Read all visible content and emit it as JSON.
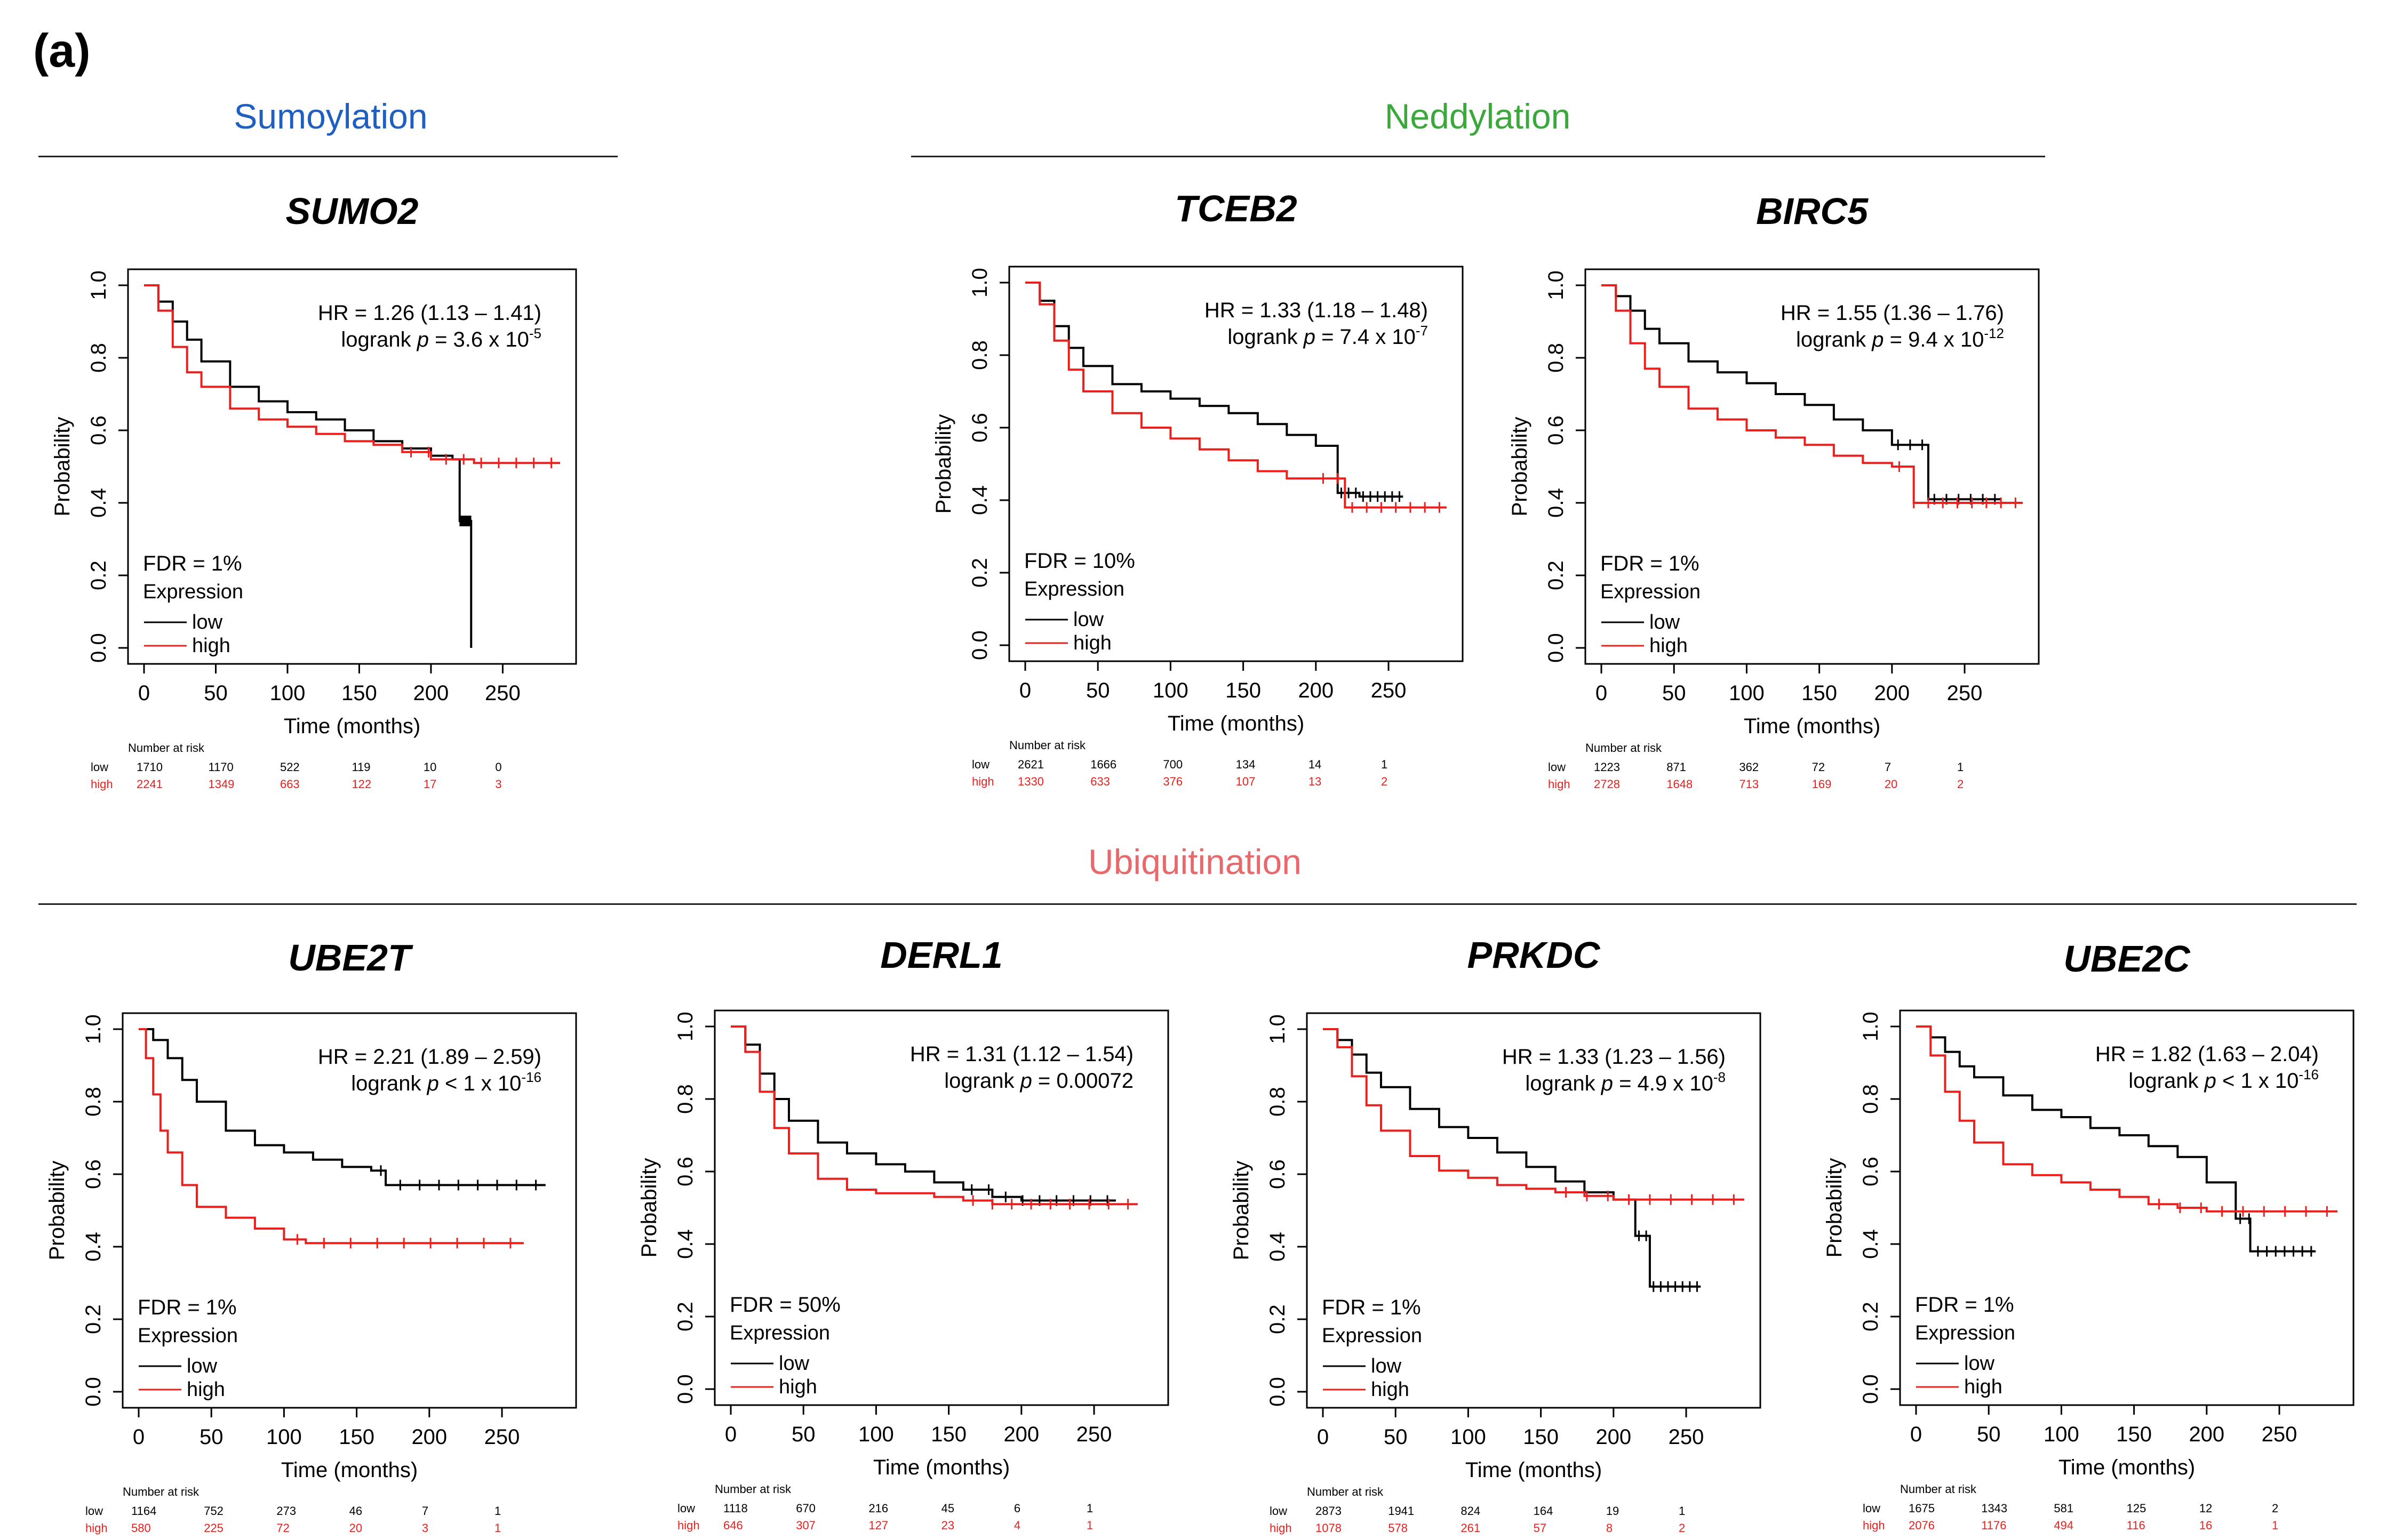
{
  "panel_label": "(a)",
  "sections": {
    "sumoylation": {
      "title": "Sumoylation",
      "color": "#1f5fbf"
    },
    "neddylation": {
      "title": "Neddylation",
      "color": "#3aa83a"
    },
    "ubiquitination": {
      "title": "Ubiquitination",
      "color": "#e8696b"
    }
  },
  "colors": {
    "low": "#000000",
    "high": "#e8201e"
  },
  "chart_data": [
    {
      "type": "line",
      "gene": "SUMO2",
      "title": "SUMO2",
      "xlabel": "Time (months)",
      "ylabel": "Probability",
      "xticks": [
        "0",
        "50",
        "100",
        "150",
        "200",
        "250"
      ],
      "yticks": [
        "0.0",
        "0.2",
        "0.4",
        "0.6",
        "0.8",
        "1.0"
      ],
      "xlim": [
        0,
        290
      ],
      "ylim": [
        0,
        1
      ],
      "hr_line": "HR = 1.26 (1.13 – 1.41)",
      "logrank": {
        "prefix": "logrank ",
        "p": "p",
        "value": " = 3.6 x 10",
        "exp": "-5"
      },
      "fdr": "FDR = 1%",
      "legend_title": "Expression",
      "legend_low": "low",
      "legend_high": "high",
      "risk": {
        "header": "Number at risk",
        "times": [
          0,
          50,
          100,
          150,
          200,
          250
        ],
        "low_label": "low",
        "high_label": "high",
        "low": [
          "1710",
          "1170",
          "522",
          "119",
          "10",
          "0"
        ],
        "high": [
          "2241",
          "1349",
          "663",
          "122",
          "17",
          "3"
        ]
      },
      "series": [
        {
          "name": "low",
          "x": [
            0,
            10,
            20,
            30,
            40,
            60,
            80,
            100,
            120,
            140,
            160,
            180,
            200,
            215,
            220,
            220,
            228,
            228
          ],
          "y": [
            1,
            0.955,
            0.9,
            0.85,
            0.79,
            0.72,
            0.68,
            0.65,
            0.63,
            0.6,
            0.57,
            0.55,
            0.53,
            0.52,
            0.52,
            0.35,
            0.35,
            0.0
          ]
        },
        {
          "name": "high",
          "x": [
            0,
            10,
            20,
            30,
            40,
            60,
            80,
            100,
            120,
            140,
            160,
            180,
            200,
            230,
            290
          ],
          "y": [
            1,
            0.93,
            0.83,
            0.76,
            0.72,
            0.66,
            0.63,
            0.61,
            0.59,
            0.57,
            0.56,
            0.54,
            0.52,
            0.51,
            0.51
          ]
        }
      ]
    },
    {
      "type": "line",
      "gene": "TCEB2",
      "title": "TCEB2",
      "xlabel": "Time (months)",
      "ylabel": "Probability",
      "xticks": [
        "0",
        "50",
        "100",
        "150",
        "200",
        "250"
      ],
      "yticks": [
        "0.0",
        "0.2",
        "0.4",
        "0.6",
        "0.8",
        "1.0"
      ],
      "xlim": [
        0,
        290
      ],
      "ylim": [
        0,
        1
      ],
      "hr_line": "HR = 1.33 (1.18 – 1.48)",
      "logrank": {
        "prefix": "logrank ",
        "p": "p",
        "value": " = 7.4 x 10",
        "exp": "-7"
      },
      "fdr": "FDR = 10%",
      "legend_title": "Expression",
      "legend_low": "low",
      "legend_high": "high",
      "risk": {
        "header": "Number at risk",
        "times": [
          0,
          50,
          100,
          150,
          200,
          250
        ],
        "low_label": "low",
        "high_label": "high",
        "low": [
          "2621",
          "1666",
          "700",
          "134",
          "14",
          "1"
        ],
        "high": [
          "1330",
          "633",
          "376",
          "107",
          "13",
          "2"
        ]
      },
      "series": [
        {
          "name": "low",
          "x": [
            0,
            10,
            20,
            30,
            40,
            60,
            80,
            100,
            120,
            140,
            160,
            180,
            200,
            215,
            215,
            230,
            230,
            260
          ],
          "y": [
            1,
            0.95,
            0.88,
            0.82,
            0.77,
            0.72,
            0.7,
            0.68,
            0.66,
            0.64,
            0.61,
            0.58,
            0.55,
            0.55,
            0.42,
            0.42,
            0.41,
            0.41
          ]
        },
        {
          "name": "high",
          "x": [
            0,
            10,
            20,
            30,
            40,
            60,
            80,
            100,
            120,
            140,
            160,
            180,
            200,
            220,
            220,
            290
          ],
          "y": [
            1,
            0.94,
            0.84,
            0.76,
            0.7,
            0.64,
            0.6,
            0.57,
            0.54,
            0.51,
            0.48,
            0.46,
            0.46,
            0.43,
            0.38,
            0.38
          ]
        }
      ]
    },
    {
      "type": "line",
      "gene": "BIRC5",
      "title": "BIRC5",
      "xlabel": "Time (months)",
      "ylabel": "Probability",
      "xticks": [
        "0",
        "50",
        "100",
        "150",
        "200",
        "250"
      ],
      "yticks": [
        "0.0",
        "0.2",
        "0.4",
        "0.6",
        "0.8",
        "1.0"
      ],
      "xlim": [
        0,
        290
      ],
      "ylim": [
        0,
        1
      ],
      "hr_line": "HR = 1.55 (1.36 – 1.76)",
      "logrank": {
        "prefix": "logrank ",
        "p": "p",
        "value": " = 9.4 x 10",
        "exp": "-12"
      },
      "fdr": "FDR = 1%",
      "legend_title": "Expression",
      "legend_low": "low",
      "legend_high": "high",
      "risk": {
        "header": "Number at risk",
        "times": [
          0,
          50,
          100,
          150,
          200,
          250
        ],
        "low_label": "low",
        "high_label": "high",
        "low": [
          "1223",
          "871",
          "362",
          "72",
          "7",
          "1"
        ],
        "high": [
          "2728",
          "1648",
          "713",
          "169",
          "20",
          "2"
        ]
      },
      "series": [
        {
          "name": "low",
          "x": [
            0,
            10,
            20,
            30,
            40,
            60,
            80,
            100,
            120,
            140,
            160,
            180,
            200,
            225,
            225,
            275
          ],
          "y": [
            1,
            0.97,
            0.93,
            0.88,
            0.84,
            0.79,
            0.76,
            0.73,
            0.7,
            0.67,
            0.63,
            0.6,
            0.56,
            0.55,
            0.41,
            0.41
          ]
        },
        {
          "name": "high",
          "x": [
            0,
            10,
            20,
            30,
            40,
            60,
            80,
            100,
            120,
            140,
            160,
            180,
            200,
            215,
            215,
            290
          ],
          "y": [
            1,
            0.93,
            0.84,
            0.77,
            0.72,
            0.66,
            0.63,
            0.6,
            0.58,
            0.56,
            0.53,
            0.51,
            0.5,
            0.5,
            0.4,
            0.4
          ]
        }
      ]
    },
    {
      "type": "line",
      "gene": "UBE2T",
      "title": "UBE2T",
      "xlabel": "Time (months)",
      "ylabel": "Probability",
      "xticks": [
        "0",
        "50",
        "100",
        "150",
        "200",
        "250"
      ],
      "yticks": [
        "0.0",
        "0.2",
        "0.4",
        "0.6",
        "0.8",
        "1.0"
      ],
      "xlim": [
        0,
        290
      ],
      "ylim": [
        0,
        1
      ],
      "hr_line": "HR = 2.21 (1.89 – 2.59)",
      "logrank": {
        "prefix": "logrank ",
        "p": "p",
        "value": " < 1 x 10",
        "exp": "-16"
      },
      "fdr": "FDR = 1%",
      "legend_title": "Expression",
      "legend_low": "low",
      "legend_high": "high",
      "risk": {
        "header": "Number at risk",
        "times": [
          0,
          50,
          100,
          150,
          200,
          250
        ],
        "low_label": "low",
        "high_label": "high",
        "low": [
          "1164",
          "752",
          "273",
          "46",
          "7",
          "1"
        ],
        "high": [
          "580",
          "225",
          "72",
          "20",
          "3",
          "1"
        ]
      },
      "series": [
        {
          "name": "low",
          "x": [
            0,
            10,
            20,
            30,
            40,
            60,
            80,
            100,
            120,
            140,
            160,
            170,
            170,
            280
          ],
          "y": [
            1,
            0.97,
            0.92,
            0.86,
            0.8,
            0.72,
            0.68,
            0.66,
            0.64,
            0.62,
            0.61,
            0.6,
            0.57,
            0.57
          ]
        },
        {
          "name": "high",
          "x": [
            0,
            5,
            10,
            15,
            20,
            30,
            40,
            60,
            80,
            100,
            115,
            120,
            265
          ],
          "y": [
            1,
            0.92,
            0.82,
            0.72,
            0.66,
            0.57,
            0.51,
            0.48,
            0.45,
            0.42,
            0.41,
            0.41,
            0.41
          ]
        }
      ]
    },
    {
      "type": "line",
      "gene": "DERL1",
      "title": "DERL1",
      "xlabel": "Time (months)",
      "ylabel": "Probability",
      "xticks": [
        "0",
        "50",
        "100",
        "150",
        "200",
        "250"
      ],
      "yticks": [
        "0.0",
        "0.2",
        "0.4",
        "0.6",
        "0.8",
        "1.0"
      ],
      "xlim": [
        0,
        290
      ],
      "ylim": [
        0,
        1
      ],
      "hr_line": "HR = 1.31 (1.12 – 1.54)",
      "logrank": {
        "prefix": "logrank ",
        "p": "p",
        "value": " = 0.00072",
        "exp": ""
      },
      "fdr": "FDR = 50%",
      "legend_title": "Expression",
      "legend_low": "low",
      "legend_high": "high",
      "risk": {
        "header": "Number at risk",
        "times": [
          0,
          50,
          100,
          150,
          200,
          250
        ],
        "low_label": "low",
        "high_label": "high",
        "low": [
          "1118",
          "670",
          "216",
          "45",
          "6",
          "1"
        ],
        "high": [
          "646",
          "307",
          "127",
          "23",
          "4",
          "1"
        ]
      },
      "series": [
        {
          "name": "low",
          "x": [
            0,
            10,
            20,
            30,
            40,
            60,
            80,
            100,
            120,
            140,
            160,
            180,
            200,
            265
          ],
          "y": [
            1,
            0.95,
            0.87,
            0.8,
            0.74,
            0.68,
            0.65,
            0.62,
            0.6,
            0.57,
            0.55,
            0.53,
            0.52,
            0.52
          ]
        },
        {
          "name": "high",
          "x": [
            0,
            10,
            20,
            30,
            40,
            60,
            80,
            100,
            120,
            140,
            160,
            180,
            200,
            280
          ],
          "y": [
            1,
            0.93,
            0.82,
            0.72,
            0.65,
            0.58,
            0.55,
            0.54,
            0.54,
            0.53,
            0.52,
            0.51,
            0.51,
            0.51
          ]
        }
      ]
    },
    {
      "type": "line",
      "gene": "PRKDC",
      "title": "PRKDC",
      "xlabel": "Time (months)",
      "ylabel": "Probability",
      "xticks": [
        "0",
        "50",
        "100",
        "150",
        "200",
        "250"
      ],
      "yticks": [
        "0.0",
        "0.2",
        "0.4",
        "0.6",
        "0.8",
        "1.0"
      ],
      "xlim": [
        0,
        290
      ],
      "ylim": [
        0,
        1
      ],
      "hr_line": "HR = 1.33 (1.23 – 1.56)",
      "logrank": {
        "prefix": "logrank ",
        "p": "p",
        "value": " = 4.9 x 10",
        "exp": "-8"
      },
      "fdr": "FDR = 1%",
      "legend_title": "Expression",
      "legend_low": "low",
      "legend_high": "high",
      "risk": {
        "header": "Number at risk",
        "times": [
          0,
          50,
          100,
          150,
          200,
          250
        ],
        "low_label": "low",
        "high_label": "high",
        "low": [
          "2873",
          "1941",
          "824",
          "164",
          "19",
          "1"
        ],
        "high": [
          "1078",
          "578",
          "261",
          "57",
          "8",
          "2"
        ]
      },
      "series": [
        {
          "name": "low",
          "x": [
            0,
            10,
            20,
            30,
            40,
            60,
            80,
            100,
            120,
            140,
            160,
            180,
            200,
            215,
            215,
            225,
            225,
            260
          ],
          "y": [
            1,
            0.97,
            0.93,
            0.88,
            0.84,
            0.78,
            0.73,
            0.7,
            0.66,
            0.62,
            0.58,
            0.55,
            0.53,
            0.53,
            0.43,
            0.43,
            0.29,
            0.29
          ]
        },
        {
          "name": "high",
          "x": [
            0,
            10,
            20,
            30,
            40,
            60,
            80,
            100,
            120,
            140,
            160,
            180,
            200,
            290
          ],
          "y": [
            1,
            0.95,
            0.87,
            0.79,
            0.72,
            0.65,
            0.61,
            0.59,
            0.57,
            0.56,
            0.55,
            0.54,
            0.53,
            0.53
          ]
        }
      ]
    },
    {
      "type": "line",
      "gene": "UBE2C",
      "title": "UBE2C",
      "xlabel": "Time (months)",
      "ylabel": "Probability",
      "xticks": [
        "0",
        "50",
        "100",
        "150",
        "200",
        "250"
      ],
      "yticks": [
        "0.0",
        "0.2",
        "0.4",
        "0.6",
        "0.8",
        "1.0"
      ],
      "xlim": [
        0,
        290
      ],
      "ylim": [
        0,
        1
      ],
      "hr_line": "HR = 1.82 (1.63 – 2.04)",
      "logrank": {
        "prefix": "logrank ",
        "p": "p",
        "value": " < 1 x 10",
        "exp": "-16"
      },
      "fdr": "FDR = 1%",
      "legend_title": "Expression",
      "legend_low": "low",
      "legend_high": "high",
      "risk": {
        "header": "Number at risk",
        "times": [
          0,
          50,
          100,
          150,
          200,
          250
        ],
        "low_label": "low",
        "high_label": "high",
        "low": [
          "1675",
          "1343",
          "581",
          "125",
          "12",
          "2"
        ],
        "high": [
          "2076",
          "1176",
          "494",
          "116",
          "16",
          "1"
        ]
      },
      "series": [
        {
          "name": "low",
          "x": [
            0,
            10,
            20,
            30,
            40,
            60,
            80,
            100,
            120,
            140,
            160,
            180,
            200,
            220,
            220,
            230,
            230,
            275
          ],
          "y": [
            1,
            0.97,
            0.93,
            0.89,
            0.86,
            0.81,
            0.77,
            0.75,
            0.72,
            0.7,
            0.67,
            0.64,
            0.57,
            0.56,
            0.47,
            0.47,
            0.38,
            0.38
          ]
        },
        {
          "name": "high",
          "x": [
            0,
            10,
            20,
            30,
            40,
            60,
            80,
            100,
            120,
            140,
            160,
            180,
            200,
            290
          ],
          "y": [
            1,
            0.92,
            0.82,
            0.74,
            0.68,
            0.62,
            0.59,
            0.57,
            0.55,
            0.53,
            0.51,
            0.5,
            0.49,
            0.49
          ]
        }
      ]
    }
  ]
}
